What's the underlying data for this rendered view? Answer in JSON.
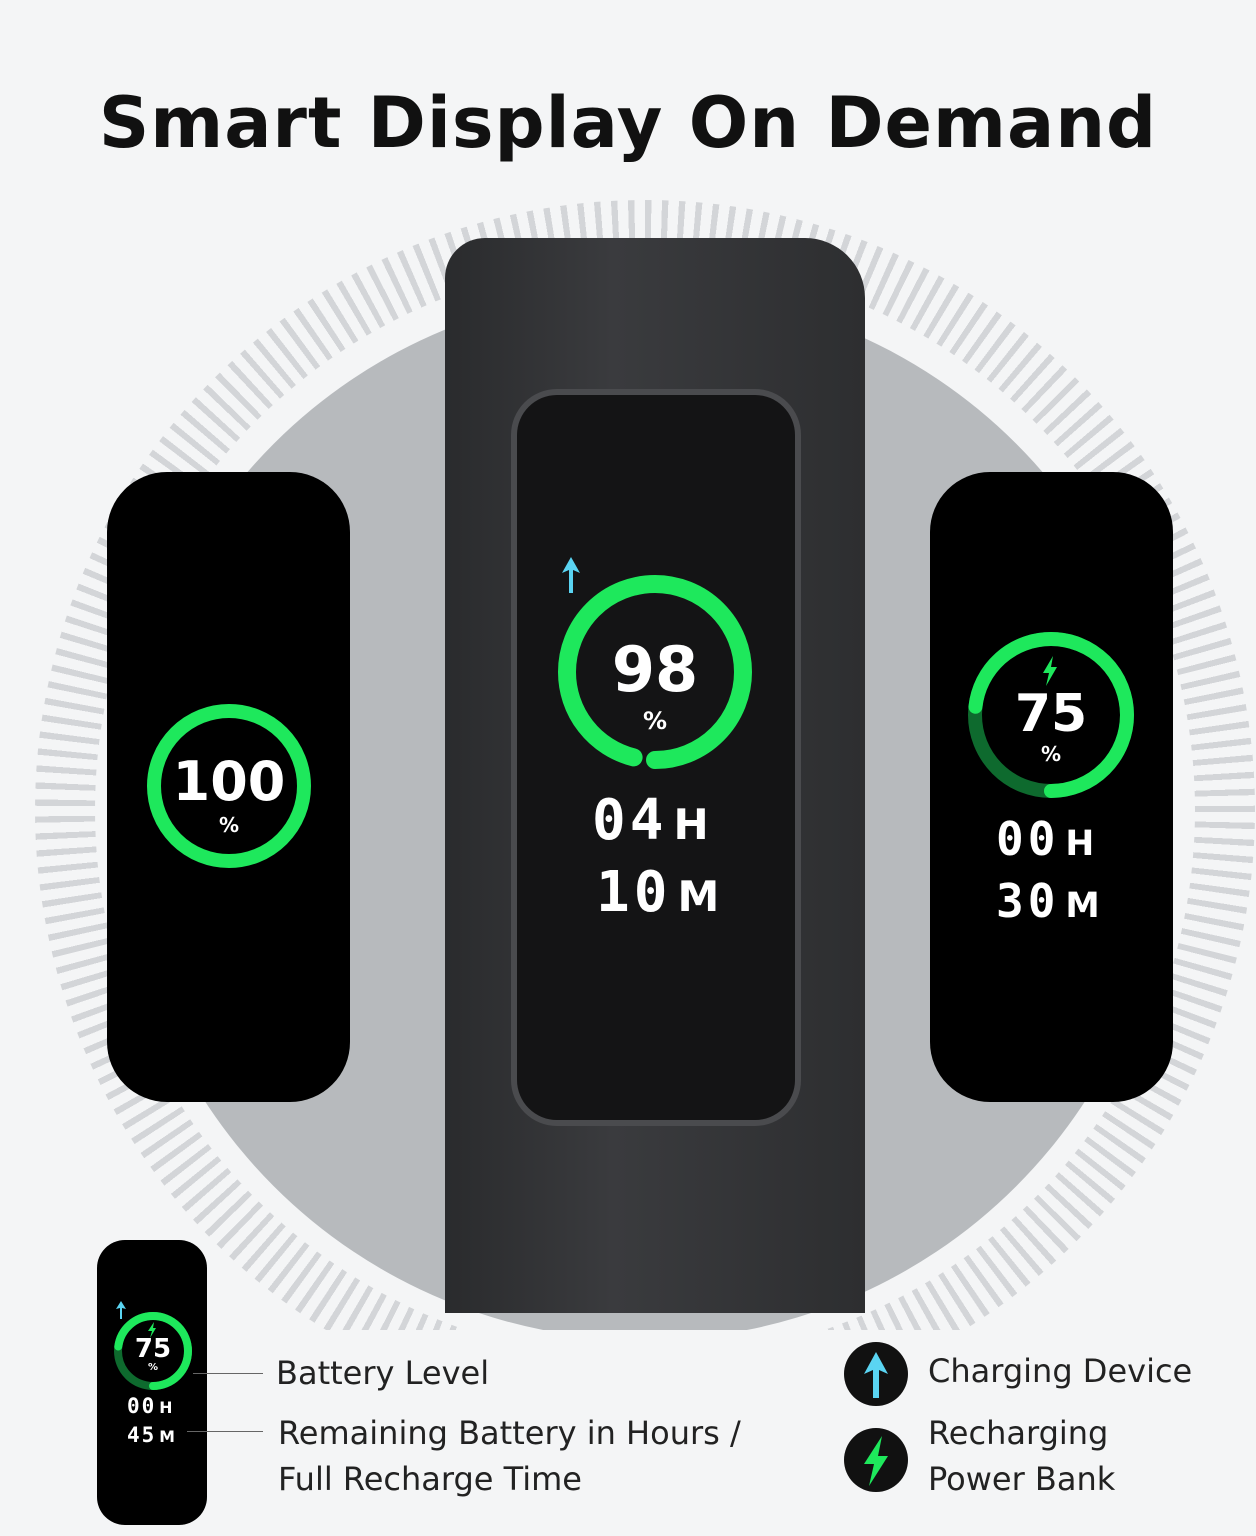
{
  "title": "Smart Display On Demand",
  "colors": {
    "ring": "#1ee85c",
    "ring_dark": "#0e6a2e",
    "arrow": "#5ad4f2",
    "screen": "#000000"
  },
  "displays": {
    "left": {
      "percent": "100",
      "unit": "%",
      "level": 100
    },
    "middle": {
      "percent": "98",
      "unit": "%",
      "level": 98,
      "hours": "04",
      "hours_unit": "H",
      "minutes": "10",
      "minutes_unit": "M",
      "icon": "up-arrow-icon"
    },
    "right": {
      "percent": "75",
      "unit": "%",
      "level": 75,
      "hours": "00",
      "hours_unit": "H",
      "minutes": "30",
      "minutes_unit": "M",
      "icon": "bolt-icon"
    },
    "example": {
      "percent": "75",
      "unit": "%",
      "level": 75,
      "hours": "00",
      "hours_unit": "H",
      "minutes": "45",
      "minutes_unit": "M"
    }
  },
  "legend": {
    "battery_level": "Battery Level",
    "remaining_line1": "Remaining Battery in Hours /",
    "remaining_line2": "Full Recharge Time",
    "charging_device": "Charging Device",
    "recharging_line1": "Recharging",
    "recharging_line2": "Power Bank"
  }
}
